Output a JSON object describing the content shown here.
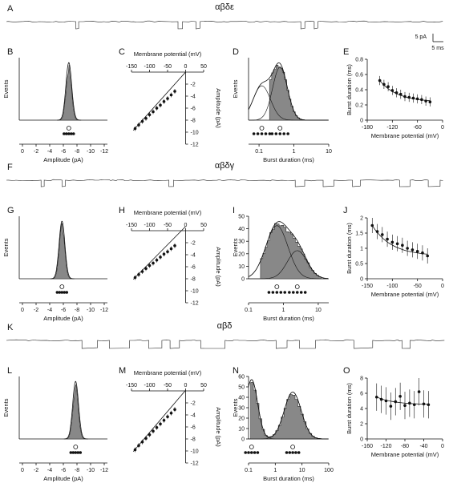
{
  "figure": {
    "rows": [
      {
        "trace": {
          "letter": "A",
          "title": "αβδε",
          "scale_current": "5 pA",
          "scale_time": "5 ms"
        },
        "panels": {
          "amp": {
            "letter": "B",
            "ylabel": "Events",
            "xlabel": "Amplitude (pA)",
            "ticks": [
              "0",
              "-2",
              "-4",
              "-6",
              "-8",
              "-10",
              "-12"
            ]
          },
          "iv": {
            "letter": "C",
            "xlabel": "Membrane potential (mV)",
            "ylabel": "Amplitude (pA)",
            "xticks": [
              "-150",
              "-100",
              "-50",
              "0",
              "50"
            ],
            "yticks": [
              "-2",
              "-4",
              "-6",
              "-8",
              "-10",
              "-12"
            ]
          },
          "burst": {
            "letter": "D",
            "ylabel": "Events",
            "xlabel": "Burst duration (ms)",
            "xticks": [
              "0.1",
              "1",
              "10"
            ],
            "yticks": []
          },
          "dur": {
            "letter": "E",
            "ylabel": "Burst duration (ms)",
            "xlabel": "Membrane potential (mV)",
            "xticks": [
              "-180",
              "-120",
              "-60",
              "0"
            ],
            "yticks": [
              "0",
              "0.2",
              "0.4",
              "0.6",
              "0.8"
            ]
          }
        }
      },
      {
        "trace": {
          "letter": "F",
          "title": "αβδγ"
        },
        "panels": {
          "amp": {
            "letter": "G",
            "ylabel": "Events",
            "xlabel": "Amplitude (pA)",
            "ticks": [
              "0",
              "-2",
              "-4",
              "-6",
              "-8",
              "-10",
              "-12"
            ]
          },
          "iv": {
            "letter": "H",
            "xlabel": "Membrane potential (mV)",
            "ylabel": "Amplitude (pA)",
            "xticks": [
              "-150",
              "-100",
              "-50",
              "0",
              "50"
            ],
            "yticks": [
              "-2",
              "-4",
              "-6",
              "-8",
              "-10",
              "-12"
            ]
          },
          "burst": {
            "letter": "I",
            "ylabel": "Events",
            "xlabel": "Burst duration (ms)",
            "xticks": [
              "0.1",
              "1",
              "10"
            ],
            "yticks": [
              "0",
              "10",
              "20",
              "30",
              "40",
              "50"
            ]
          },
          "dur": {
            "letter": "J",
            "ylabel": "Burst duration (ms)",
            "xlabel": "Membrane potential (mV)",
            "xticks": [
              "-150",
              "-100",
              "-50",
              "0"
            ],
            "yticks": [
              "0",
              "0.5",
              "1",
              "1.5",
              "2"
            ]
          }
        }
      },
      {
        "trace": {
          "letter": "K",
          "title": "αβδ"
        },
        "panels": {
          "amp": {
            "letter": "L",
            "ylabel": "Events",
            "xlabel": "Amplitude (pA)",
            "ticks": [
              "0",
              "-2",
              "-4",
              "-6",
              "-8",
              "-10",
              "-12"
            ]
          },
          "iv": {
            "letter": "M",
            "xlabel": "Membrane potential (mV)",
            "ylabel": "Amplitude (pA)",
            "xticks": [
              "-150",
              "-100",
              "-50",
              "0",
              "50"
            ],
            "yticks": [
              "-2",
              "-4",
              "-6",
              "-8",
              "-10",
              "-12"
            ]
          },
          "burst": {
            "letter": "N",
            "ylabel": "Events",
            "xlabel": "Burst duration (ms)",
            "xticks": [
              "0.1",
              "1",
              "10",
              "100"
            ],
            "yticks": [
              "0",
              "10",
              "20",
              "30",
              "40",
              "50",
              "60"
            ]
          },
          "dur": {
            "letter": "O",
            "ylabel": "Burst duration (ms)",
            "xlabel": "Membrane potential (mV)",
            "xticks": [
              "-160",
              "-120",
              "-80",
              "-40",
              "0"
            ],
            "yticks": [
              "0",
              "2",
              "4",
              "6",
              "8"
            ]
          }
        }
      }
    ]
  },
  "chart_data": [
    {
      "panel": "B",
      "type": "bar",
      "xlabel": "Amplitude (pA)",
      "ylabel": "Events",
      "x_range": [
        0,
        -12
      ],
      "peak_x": -6.8
    },
    {
      "panel": "C",
      "type": "scatter",
      "xlabel": "Membrane potential (mV)",
      "ylabel": "Amplitude (pA)",
      "xlim": [
        -150,
        50
      ],
      "ylim": [
        0,
        -12
      ],
      "x": [
        -140,
        -130,
        -120,
        -110,
        -100,
        -90,
        -80,
        -70,
        -60,
        -50,
        -40,
        -30
      ],
      "y": [
        -9.4,
        -8.8,
        -8.2,
        -7.7,
        -7.1,
        -6.6,
        -6.0,
        -5.5,
        -4.9,
        -4.4,
        -3.8,
        -3.2
      ]
    },
    {
      "panel": "D",
      "type": "bar",
      "xlabel": "Burst duration (ms)",
      "ylabel": "Events",
      "xscale": "log",
      "xlim": [
        0.05,
        10
      ]
    },
    {
      "panel": "E",
      "type": "scatter",
      "xlabel": "Membrane potential (mV)",
      "ylabel": "Burst duration (ms)",
      "xlim": [
        -180,
        0
      ],
      "ylim": [
        0,
        0.8
      ],
      "x": [
        -150,
        -140,
        -130,
        -120,
        -110,
        -100,
        -90,
        -80,
        -70,
        -60,
        -50,
        -40,
        -30
      ],
      "y": [
        0.52,
        0.47,
        0.44,
        0.39,
        0.36,
        0.34,
        0.31,
        0.3,
        0.29,
        0.28,
        0.27,
        0.25,
        0.24
      ]
    },
    {
      "panel": "G",
      "type": "bar",
      "xlabel": "Amplitude (pA)",
      "ylabel": "Events",
      "x_range": [
        0,
        -12
      ],
      "peak_x": -5.8
    },
    {
      "panel": "H",
      "type": "scatter",
      "xlabel": "Membrane potential (mV)",
      "ylabel": "Amplitude (pA)",
      "xlim": [
        -150,
        50
      ],
      "ylim": [
        0,
        -12
      ],
      "x": [
        -140,
        -130,
        -120,
        -110,
        -100,
        -90,
        -80,
        -70,
        -60,
        -50,
        -40,
        -30
      ],
      "y": [
        -7.8,
        -7.3,
        -6.8,
        -6.3,
        -5.8,
        -5.4,
        -4.9,
        -4.4,
        -3.9,
        -3.5,
        -3.0,
        -2.5
      ]
    },
    {
      "panel": "I",
      "type": "bar",
      "xlabel": "Burst duration (ms)",
      "ylabel": "Events",
      "xscale": "log",
      "xlim": [
        0.1,
        20
      ],
      "ylim": [
        0,
        50
      ]
    },
    {
      "panel": "J",
      "type": "scatter",
      "xlabel": "Membrane potential (mV)",
      "ylabel": "Burst duration (ms)",
      "xlim": [
        -150,
        0
      ],
      "ylim": [
        0,
        2
      ],
      "x": [
        -140,
        -130,
        -120,
        -110,
        -100,
        -90,
        -80,
        -70,
        -60,
        -50,
        -40,
        -30
      ],
      "y": [
        1.75,
        1.55,
        1.45,
        1.3,
        1.2,
        1.15,
        1.1,
        1.0,
        0.95,
        0.9,
        0.85,
        0.75
      ]
    },
    {
      "panel": "L",
      "type": "bar",
      "xlabel": "Amplitude (pA)",
      "ylabel": "Events",
      "x_range": [
        0,
        -12
      ],
      "peak_x": -7.8
    },
    {
      "panel": "M",
      "type": "scatter",
      "xlabel": "Membrane potential (mV)",
      "ylabel": "Amplitude (pA)",
      "xlim": [
        -150,
        50
      ],
      "ylim": [
        0,
        -12
      ],
      "x": [
        -140,
        -130,
        -120,
        -110,
        -100,
        -90,
        -80,
        -70,
        -60,
        -50,
        -40,
        -30
      ],
      "y": [
        -9.8,
        -9.1,
        -8.5,
        -7.9,
        -7.3,
        -6.7,
        -6.1,
        -5.5,
        -4.9,
        -4.3,
        -3.7,
        -3.1
      ]
    },
    {
      "panel": "N",
      "type": "bar",
      "xlabel": "Burst duration (ms)",
      "ylabel": "Events",
      "xscale": "log",
      "xlim": [
        0.1,
        100
      ],
      "ylim": [
        0,
        60
      ]
    },
    {
      "panel": "O",
      "type": "scatter",
      "xlabel": "Membrane potential (mV)",
      "ylabel": "Burst duration (ms)",
      "xlim": [
        -160,
        0
      ],
      "ylim": [
        0,
        8
      ],
      "x": [
        -140,
        -130,
        -120,
        -110,
        -100,
        -90,
        -80,
        -70,
        -60,
        -50,
        -40,
        -30
      ],
      "y": [
        5.5,
        5.2,
        5.0,
        4.3,
        4.9,
        5.6,
        4.4,
        4.7,
        4.5,
        6.2,
        4.6,
        4.5
      ]
    }
  ]
}
